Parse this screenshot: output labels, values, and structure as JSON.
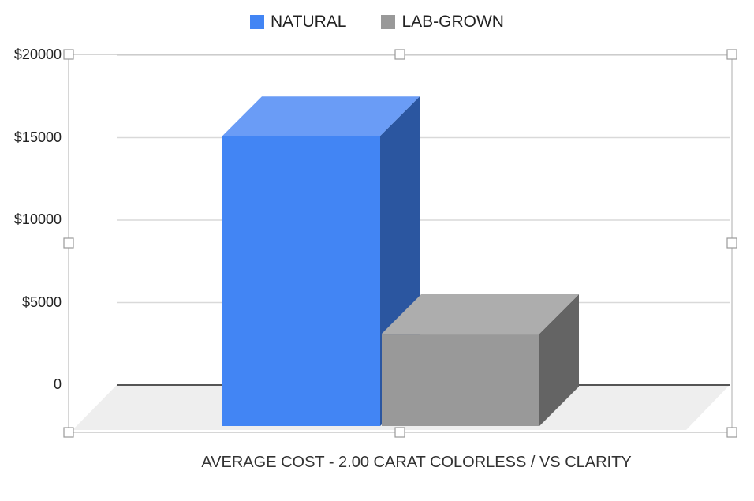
{
  "chart_data": {
    "type": "bar",
    "categories": [
      ""
    ],
    "series": [
      {
        "name": "NATURAL",
        "values": [
          17500
        ],
        "color": "#4285f4"
      },
      {
        "name": "LAB-GROWN",
        "values": [
          5500
        ],
        "color": "#999999"
      }
    ],
    "title": "",
    "xlabel": "AVERAGE COST - 2.00 CARAT COLORLESS / VS CLARITY",
    "ylabel": "",
    "ylim": [
      0,
      20000
    ],
    "yticks": [
      {
        "value": 0,
        "label": "0"
      },
      {
        "value": 5000,
        "label": "$5000"
      },
      {
        "value": 10000,
        "label": "$10000"
      },
      {
        "value": 15000,
        "label": "$15000"
      },
      {
        "value": 20000,
        "label": "$20000"
      }
    ],
    "grid": true,
    "legend": "top-center",
    "three_d": true
  }
}
